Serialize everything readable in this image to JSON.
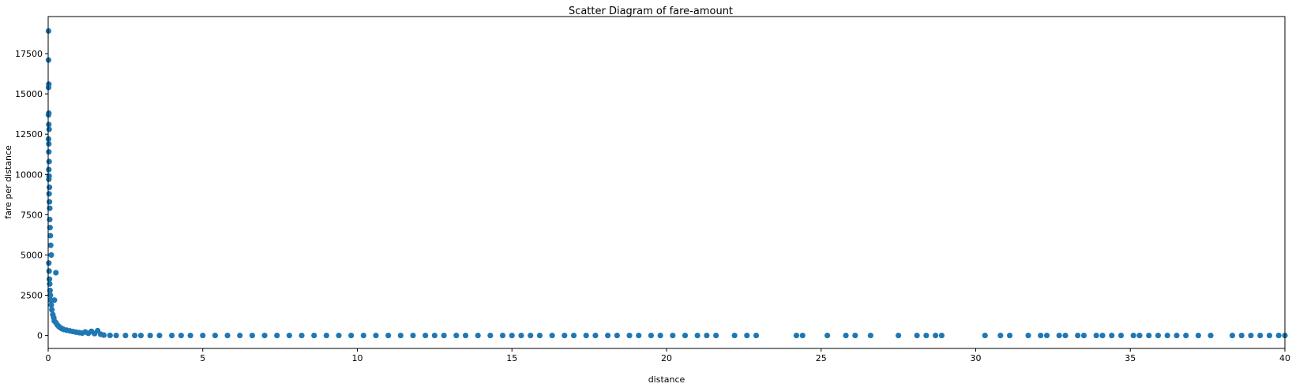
{
  "chart_data": {
    "type": "scatter",
    "title": "Scatter Diagram of fare-amount",
    "xlabel": "distance",
    "ylabel": "fare per distance",
    "xlim": [
      0,
      40
    ],
    "ylim": [
      -800,
      19800
    ],
    "xticks": [
      0,
      5,
      10,
      15,
      20,
      25,
      30,
      35,
      40
    ],
    "xtick_labels": [
      "0",
      "5",
      "10",
      "15",
      "20",
      "25",
      "30",
      "35",
      "40"
    ],
    "yticks": [
      0,
      2500,
      5000,
      7500,
      10000,
      12500,
      15000,
      17500
    ],
    "ytick_labels": [
      "0",
      "2500",
      "5000",
      "7500",
      "10000",
      "12500",
      "15000",
      "17500"
    ],
    "grid": false,
    "marker_color": "#1f77b4",
    "series": [
      {
        "x": [
          0.01,
          0.01,
          0.02,
          0.01,
          0.02,
          0.01,
          0.02,
          0.03,
          0.01,
          0.02,
          0.02,
          0.03,
          0.02,
          0.03,
          0.02,
          0.04,
          0.03,
          0.04,
          0.05,
          0.05,
          0.06,
          0.07,
          0.08,
          0.1,
          0.25,
          0.2,
          0.02,
          0.03,
          0.04,
          0.05,
          0.06,
          0.07,
          0.08,
          0.1,
          0.12,
          0.15,
          0.18,
          0.2,
          0.25,
          0.3,
          0.35,
          0.4,
          0.45,
          0.5,
          0.6,
          0.7,
          0.8,
          0.9,
          1.0,
          1.1,
          1.2,
          1.3,
          1.4,
          1.5,
          1.6,
          1.7,
          1.8,
          2.0,
          2.2,
          2.5,
          2.8,
          3.0,
          3.3,
          3.6,
          4.0,
          4.3,
          4.6,
          5.0,
          5.4,
          5.8,
          6.2,
          6.6,
          7.0,
          7.4,
          7.8,
          8.2,
          8.6,
          9.0,
          9.4,
          9.8,
          10.2,
          10.6,
          11.0,
          11.4,
          11.8,
          12.2,
          12.5,
          12.8,
          13.2,
          13.5,
          13.9,
          14.3,
          14.7,
          15.0,
          15.3,
          15.6,
          15.9,
          16.3,
          16.7,
          17.0,
          17.4,
          17.7,
          18.1,
          18.4,
          18.8,
          19.1,
          19.5,
          19.8,
          20.2,
          20.6,
          21.0,
          21.3,
          21.6,
          22.2,
          22.6,
          22.9,
          24.2,
          24.4,
          25.2,
          25.8,
          26.1,
          26.6,
          27.5,
          28.1,
          28.4,
          28.7,
          28.9,
          30.3,
          30.8,
          31.1,
          31.7,
          32.1,
          32.3,
          32.7,
          32.9,
          33.3,
          33.5,
          33.9,
          34.1,
          34.4,
          34.7,
          35.1,
          35.3,
          35.6,
          35.9,
          36.2,
          36.5,
          36.8,
          37.2,
          37.6,
          38.3,
          38.6,
          38.9,
          39.2,
          39.5,
          39.8,
          40.0
        ],
        "y": [
          18900,
          17100,
          15600,
          15400,
          13800,
          13700,
          13100,
          12800,
          12200,
          11900,
          11400,
          10800,
          10300,
          9900,
          9700,
          9200,
          8800,
          8300,
          7900,
          7200,
          6700,
          6200,
          5600,
          5000,
          3900,
          2200,
          4500,
          4000,
          3500,
          3200,
          2800,
          2500,
          2200,
          1900,
          1600,
          1300,
          1100,
          900,
          800,
          650,
          550,
          480,
          420,
          380,
          330,
          290,
          250,
          210,
          180,
          150,
          220,
          140,
          260,
          120,
          300,
          80,
          30,
          10,
          5,
          5,
          5,
          5,
          5,
          5,
          5,
          5,
          5,
          5,
          5,
          5,
          5,
          5,
          5,
          5,
          5,
          5,
          5,
          5,
          5,
          5,
          5,
          5,
          5,
          5,
          5,
          5,
          5,
          5,
          5,
          5,
          5,
          5,
          5,
          5,
          5,
          5,
          5,
          5,
          5,
          5,
          5,
          5,
          5,
          5,
          5,
          5,
          5,
          5,
          5,
          5,
          5,
          5,
          5,
          5,
          5,
          5,
          5,
          5,
          5,
          5,
          5,
          5,
          5,
          5,
          5,
          5,
          5,
          5,
          5,
          5,
          5,
          5,
          5,
          5,
          5,
          5,
          5,
          5,
          5,
          5,
          5,
          5,
          5,
          5,
          5,
          5,
          5,
          5,
          5,
          5,
          5,
          5,
          5,
          5,
          5,
          5,
          5
        ]
      }
    ]
  }
}
